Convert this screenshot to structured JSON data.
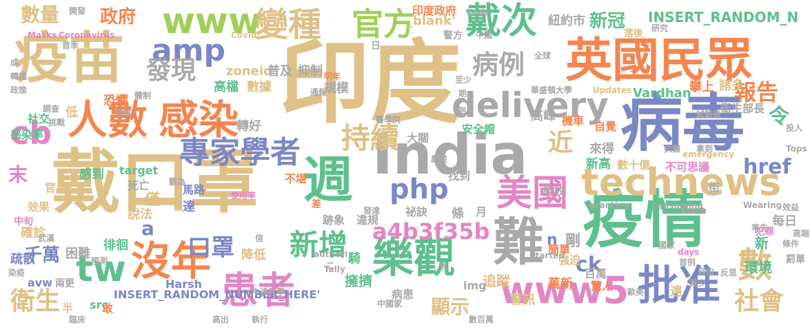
{
  "palette": {
    "tan": "#dfc187",
    "green": "#5ec08e",
    "blue": "#7b88c4",
    "lime": "#a2cf59",
    "pink": "#e386c4",
    "orange": "#f4854f",
    "gray": "#a9a9a9",
    "teal": "#67c2a8"
  },
  "words": [
    {
      "text": "印度",
      "color": "tan"
    },
    {
      "text": "戴口罩",
      "color": "tan"
    },
    {
      "text": "疫苗",
      "color": "tan"
    },
    {
      "text": "病毒",
      "color": "blue"
    },
    {
      "text": "疫情",
      "color": "green"
    },
    {
      "text": "英國民眾",
      "color": "orange"
    },
    {
      "text": "India",
      "color": "gray"
    },
    {
      "text": "technews",
      "color": "tan"
    },
    {
      "text": "人數",
      "color": "orange"
    },
    {
      "text": "感染",
      "color": "orange"
    },
    {
      "text": "delivery",
      "color": "gray"
    },
    {
      "text": "樂觀",
      "color": "green"
    },
    {
      "text": "沒年",
      "color": "orange"
    },
    {
      "text": "患者",
      "color": "pink"
    },
    {
      "text": "www5",
      "color": "pink"
    },
    {
      "text": "批准",
      "color": "blue"
    },
    {
      "text": "週",
      "color": "green"
    },
    {
      "text": "www",
      "color": "lime"
    },
    {
      "text": "戴次",
      "color": "green"
    },
    {
      "text": "變種",
      "color": "tan"
    },
    {
      "text": "官方",
      "color": "lime"
    },
    {
      "text": "專家學者",
      "color": "blue"
    },
    {
      "text": "美國",
      "color": "pink"
    },
    {
      "text": "難",
      "color": "gray"
    },
    {
      "text": "php",
      "color": "blue"
    },
    {
      "text": "tw",
      "color": "green"
    },
    {
      "text": "amp",
      "color": "blue"
    },
    {
      "text": "cb",
      "color": "pink"
    },
    {
      "text": "持續",
      "color": "tan"
    },
    {
      "text": "新增",
      "color": "green"
    },
    {
      "text": "a4b3f35b",
      "color": "pink"
    },
    {
      "text": "病例",
      "color": "gray"
    },
    {
      "text": "發現",
      "color": "gray"
    },
    {
      "text": "衛生",
      "color": "tan"
    },
    {
      "text": "社會",
      "color": "tan"
    },
    {
      "text": "數",
      "color": "tan"
    },
    {
      "text": "口罩",
      "color": "blue"
    },
    {
      "text": "數量",
      "color": "tan"
    },
    {
      "text": "政府",
      "color": "orange"
    },
    {
      "text": "近",
      "color": "tan"
    },
    {
      "text": "報告",
      "color": "orange"
    },
    {
      "text": "令",
      "color": "green"
    },
    {
      "text": "href",
      "color": "blue"
    },
    {
      "text": "ck",
      "color": "blue"
    },
    {
      "text": "新冠",
      "color": "green"
    },
    {
      "text": "INSERT_RANDOM_N",
      "color": "green"
    },
    {
      "text": "INSERT_RANDOM_NUMBER_HERE'",
      "color": "blue"
    },
    {
      "text": "顯示",
      "color": "tan"
    },
    {
      "text": "zoneid",
      "color": "tan"
    },
    {
      "text": "千萬",
      "color": "blue"
    },
    {
      "text": "a",
      "color": "blue"
    },
    {
      "text": "n",
      "color": "blue"
    },
    {
      "text": "剛",
      "color": "gray"
    },
    {
      "text": "數十億",
      "color": "tan"
    },
    {
      "text": "來得",
      "color": "gray"
    },
    {
      "text": "不可思議",
      "color": "pink"
    },
    {
      "text": "新高",
      "color": "green"
    },
    {
      "text": "高峰",
      "color": "gray"
    },
    {
      "text": "機車",
      "color": "orange"
    },
    {
      "text": "自覺",
      "color": "orange"
    },
    {
      "text": "衛生部長",
      "color": "gray"
    },
    {
      "text": "攀上",
      "color": "orange"
    },
    {
      "text": "諸多",
      "color": "tan"
    },
    {
      "text": "紐約市",
      "color": "gray"
    },
    {
      "text": "Vardhan",
      "color": "green"
    },
    {
      "text": "_blank'",
      "color": "tan"
    },
    {
      "text": "擁擠",
      "color": "green"
    },
    {
      "text": "追蹤",
      "color": "tan"
    },
    {
      "text": "警訊",
      "color": "tan"
    },
    {
      "text": "萬新",
      "color": "orange"
    },
    {
      "text": "環境",
      "color": "green"
    },
    {
      "text": "罰單",
      "color": "gray"
    },
    {
      "text": "簡單",
      "color": "orange"
    },
    {
      "text": "百萬",
      "color": "gray"
    },
    {
      "text": "強迫",
      "color": "tan"
    },
    {
      "text": "降低",
      "color": "tan"
    },
    {
      "text": "說法",
      "color": "tan"
    },
    {
      "text": "確診",
      "color": "tan"
    },
    {
      "text": "疏散",
      "color": "blue"
    },
    {
      "text": "困難",
      "color": "gray"
    },
    {
      "text": "徘徊",
      "color": "green"
    },
    {
      "text": "馬路",
      "color": "blue"
    },
    {
      "text": "達",
      "color": "blue"
    },
    {
      "text": "僅",
      "color": "tan"
    },
    {
      "text": "社交",
      "color": "green"
    },
    {
      "text": "高檔",
      "color": "green"
    },
    {
      "text": "數據",
      "color": "tan"
    },
    {
      "text": "規模",
      "color": "gray"
    },
    {
      "text": "抑制",
      "color": "gray"
    },
    {
      "text": "普及",
      "color": "gray"
    },
    {
      "text": "轉好",
      "color": "gray"
    },
    {
      "text": "大關",
      "color": "gray"
    },
    {
      "text": "安全帽",
      "color": "green"
    },
    {
      "text": "恐懼",
      "color": "orange"
    },
    {
      "text": "感染率",
      "color": "green"
    },
    {
      "text": "末",
      "color": "pink"
    },
    {
      "text": "感到",
      "color": "green"
    },
    {
      "text": "target",
      "color": "green"
    },
    {
      "text": "死亡",
      "color": "gray"
    },
    {
      "text": "官員",
      "color": "tan"
    },
    {
      "text": "效果",
      "color": "tan"
    },
    {
      "text": "中旬",
      "color": "pink"
    },
    {
      "text": "不堪",
      "color": "orange"
    },
    {
      "text": "找到",
      "color": "gray"
    },
    {
      "text": "發放",
      "color": "gray"
    },
    {
      "text": "跡象",
      "color": "gray"
    },
    {
      "text": "違規",
      "color": "gray"
    },
    {
      "text": "祕訣",
      "color": "gray"
    },
    {
      "text": "每日",
      "color": "gray"
    },
    {
      "text": "src",
      "color": "green"
    },
    {
      "text": "avw",
      "color": "blue"
    },
    {
      "text": "img",
      "color": "gray"
    },
    {
      "text": "病患",
      "color": "gray"
    },
    {
      "text": "Harsh",
      "color": "blue"
    },
    {
      "text": "印度政府",
      "color": "orange"
    },
    {
      "text": "低",
      "color": "tan"
    },
    {
      "text": "半",
      "color": "tan"
    },
    {
      "text": "敢",
      "color": "orange"
    },
    {
      "text": "兩更",
      "color": "gray"
    },
    {
      "text": "新",
      "color": "green"
    },
    {
      "text": "騎",
      "color": "green"
    },
    {
      "text": "條",
      "color": "gray"
    },
    {
      "text": "月",
      "color": "gray"
    },
    {
      "text": "驚人",
      "color": "orange"
    },
    {
      "text": "遠",
      "color": "tan"
    },
    {
      "text": "街",
      "color": "gray"
    },
    {
      "text": "開發",
      "color": "gray"
    },
    {
      "text": "Masks",
      "color": "pink"
    },
    {
      "text": "Coronavirus",
      "color": "pink"
    },
    {
      "text": "Ends",
      "color": "gray"
    },
    {
      "text": "警方",
      "color": "gray"
    },
    {
      "text": "落後",
      "color": "tan"
    },
    {
      "text": "研究",
      "color": "gray"
    },
    {
      "text": "華盛頓大學",
      "color": "gray"
    },
    {
      "text": "Updates",
      "color": "tan"
    },
    {
      "text": "醫學院",
      "color": "gray"
    },
    {
      "text": "物質",
      "color": "gray"
    },
    {
      "text": "體制",
      "color": "gray"
    },
    {
      "text": "政策",
      "color": "gray"
    },
    {
      "text": "挑戰",
      "color": "gray"
    },
    {
      "text": "轉趨",
      "color": "gray"
    },
    {
      "text": "明年",
      "color": "orange"
    },
    {
      "text": "使用率",
      "color": "pink"
    },
    {
      "text": "預測",
      "color": "gray"
    },
    {
      "text": "觀為",
      "color": "gray"
    },
    {
      "text": "中國家",
      "color": "gray"
    },
    {
      "text": "牛津大學",
      "color": "gray"
    },
    {
      "text": "執行",
      "color": "gray"
    },
    {
      "text": "歐美",
      "color": "gray"
    },
    {
      "text": "首例",
      "color": "gray"
    },
    {
      "text": "國家",
      "color": "gray"
    },
    {
      "text": "自由",
      "color": "gray"
    },
    {
      "text": "反思",
      "color": "gray"
    },
    {
      "text": "減少",
      "color": "gray"
    },
    {
      "text": "犯罪",
      "color": "pink"
    },
    {
      "text": "條件",
      "color": "gray"
    },
    {
      "text": "高端",
      "color": "gray"
    },
    {
      "text": "days",
      "color": "pink"
    },
    {
      "text": "Crore",
      "color": "gray"
    },
    {
      "text": "Wearing",
      "color": "gray"
    },
    {
      "text": "granting",
      "color": "gray"
    },
    {
      "text": "Consuming",
      "color": "gray"
    },
    {
      "text": "效益",
      "color": "gray"
    },
    {
      "text": "emergency",
      "color": "tan"
    },
    {
      "text": "Started",
      "color": "gray"
    },
    {
      "text": "authori",
      "color": "gray"
    },
    {
      "text": "Tally",
      "color": "gray"
    },
    {
      "text": "Tops",
      "color": "gray"
    },
    {
      "text": "Covid",
      "color": "tan"
    },
    {
      "text": "數百萬",
      "color": "gray"
    },
    {
      "text": "臨床",
      "color": "gray"
    },
    {
      "text": "高出",
      "color": "gray"
    },
    {
      "text": "首季",
      "color": "gray"
    },
    {
      "text": "染疫",
      "color": "gray"
    },
    {
      "text": "武漢",
      "color": "gray"
    },
    {
      "text": "發達",
      "color": "gray"
    },
    {
      "text": "差",
      "color": "orange"
    },
    {
      "text": "說",
      "color": "gray"
    },
    {
      "text": "信",
      "color": "gray"
    },
    {
      "text": "至少",
      "color": "gray"
    },
    {
      "text": "期",
      "color": "gray"
    },
    {
      "text": "通報",
      "color": "gray"
    },
    {
      "text": "全球",
      "color": "gray"
    },
    {
      "text": "試驗後",
      "color": "gray"
    },
    {
      "text": "投入",
      "color": "gray"
    },
    {
      "text": "拿到",
      "color": "gray"
    },
    {
      "text": "抗體",
      "color": "gray"
    },
    {
      "text": "率先",
      "color": "gray"
    },
    {
      "text": "嚴峻",
      "color": "gray"
    },
    {
      "text": "調查",
      "color": "gray"
    },
    {
      "text": "日",
      "color": "gray"
    },
    {
      "text": "例",
      "color": "gray"
    },
    {
      "text": "成",
      "color": "gray"
    },
    {
      "text": "中國",
      "color": "gray"
    },
    {
      "text": "二",
      "color": "gray"
    }
  ]
}
